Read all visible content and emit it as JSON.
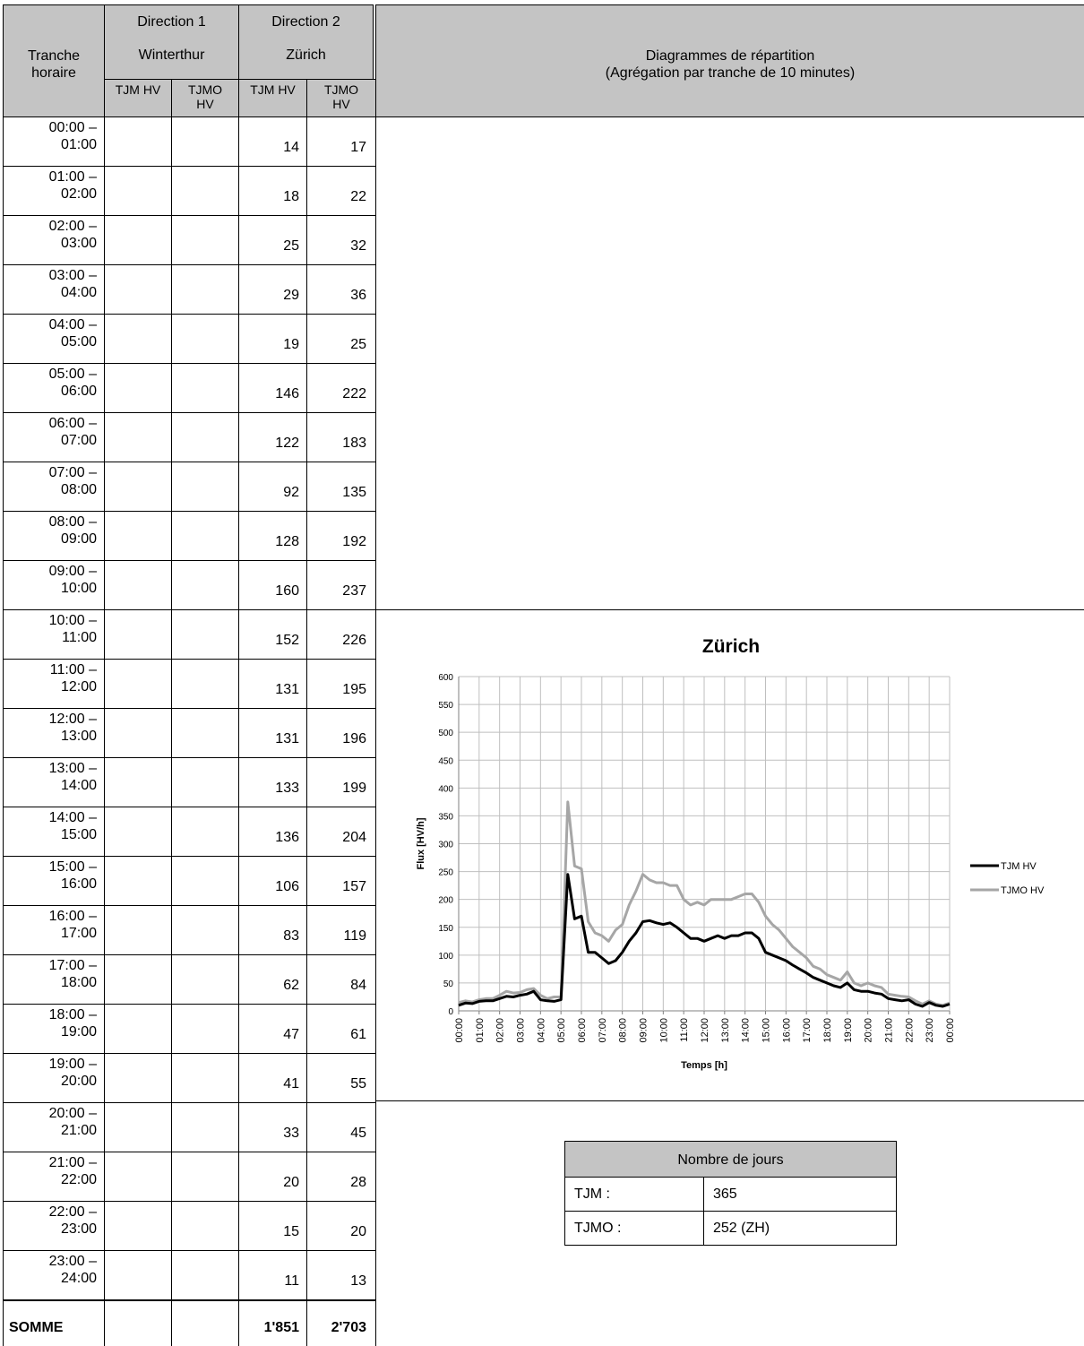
{
  "header": {
    "tranche": "Tranche horaire",
    "dir1": "Direction 1",
    "dir1_place": "Winterthur",
    "dir2": "Direction 2",
    "dir2_place": "Zürich",
    "cols": [
      "TJM HV",
      "TJMO HV",
      "TJM HV",
      "TJMO HV"
    ],
    "diagram": "Diagrammes de répartition",
    "diagram_sub": "(Agrégation par tranche de 10 minutes)"
  },
  "rows": [
    {
      "time": "00:00 – 01:00",
      "tjm": 14,
      "tjmo": 17
    },
    {
      "time": "01:00 – 02:00",
      "tjm": 18,
      "tjmo": 22
    },
    {
      "time": "02:00 – 03:00",
      "tjm": 25,
      "tjmo": 32
    },
    {
      "time": "03:00 – 04:00",
      "tjm": 29,
      "tjmo": 36
    },
    {
      "time": "04:00 – 05:00",
      "tjm": 19,
      "tjmo": 25
    },
    {
      "time": "05:00 – 06:00",
      "tjm": 146,
      "tjmo": 222
    },
    {
      "time": "06:00 – 07:00",
      "tjm": 122,
      "tjmo": 183
    },
    {
      "time": "07:00 – 08:00",
      "tjm": 92,
      "tjmo": 135
    },
    {
      "time": "08:00 – 09:00",
      "tjm": 128,
      "tjmo": 192
    },
    {
      "time": "09:00 – 10:00",
      "tjm": 160,
      "tjmo": 237
    },
    {
      "time": "10:00 – 11:00",
      "tjm": 152,
      "tjmo": 226
    },
    {
      "time": "11:00 – 12:00",
      "tjm": 131,
      "tjmo": 195
    },
    {
      "time": "12:00 – 13:00",
      "tjm": 131,
      "tjmo": 196
    },
    {
      "time": "13:00 – 14:00",
      "tjm": 133,
      "tjmo": 199
    },
    {
      "time": "14:00 – 15:00",
      "tjm": 136,
      "tjmo": 204
    },
    {
      "time": "15:00 – 16:00",
      "tjm": 106,
      "tjmo": 157
    },
    {
      "time": "16:00 – 17:00",
      "tjm": 83,
      "tjmo": 119
    },
    {
      "time": "17:00 – 18:00",
      "tjm": 62,
      "tjmo": 84
    },
    {
      "time": "18:00 – 19:00",
      "tjm": 47,
      "tjmo": 61
    },
    {
      "time": "19:00 – 20:00",
      "tjm": 41,
      "tjmo": 55
    },
    {
      "time": "20:00 – 21:00",
      "tjm": 33,
      "tjmo": 45
    },
    {
      "time": "21:00 – 22:00",
      "tjm": 20,
      "tjmo": 28
    },
    {
      "time": "22:00 – 23:00",
      "tjm": 15,
      "tjmo": 20
    },
    {
      "time": "23:00 – 24:00",
      "tjm": 11,
      "tjmo": 13
    }
  ],
  "sum": {
    "label": "SOMME",
    "tjm": "1'851",
    "tjmo": "2'703"
  },
  "days": {
    "title": "Nombre de jours",
    "rows": [
      [
        "TJM :",
        "365"
      ],
      [
        "TJMO :",
        "252 (ZH)"
      ]
    ]
  },
  "chart": {
    "type": "line",
    "title": "Zürich",
    "y_label": "Flux [HV/h]",
    "x_label": "Temps [h]",
    "xlim": [
      0,
      1440
    ],
    "ylim": [
      0,
      600
    ],
    "grid": true,
    "legend": "right",
    "yticks": [
      0,
      50,
      100,
      150,
      200,
      250,
      300,
      350,
      400,
      450,
      500,
      550,
      600
    ],
    "xticks": [
      {
        "value": 0,
        "label": "00:00"
      },
      {
        "value": 60,
        "label": "01:00"
      },
      {
        "value": 120,
        "label": "02:00"
      },
      {
        "value": 180,
        "label": "03:00"
      },
      {
        "value": 240,
        "label": "04:00"
      },
      {
        "value": 300,
        "label": "05:00"
      },
      {
        "value": 360,
        "label": "06:00"
      },
      {
        "value": 420,
        "label": "07:00"
      },
      {
        "value": 480,
        "label": "08:00"
      },
      {
        "value": 540,
        "label": "09:00"
      },
      {
        "value": 600,
        "label": "10:00"
      },
      {
        "value": 660,
        "label": "11:00"
      },
      {
        "value": 720,
        "label": "12:00"
      },
      {
        "value": 780,
        "label": "13:00"
      },
      {
        "value": 840,
        "label": "14:00"
      },
      {
        "value": 900,
        "label": "15:00"
      },
      {
        "value": 960,
        "label": "16:00"
      },
      {
        "value": 1020,
        "label": "17:00"
      },
      {
        "value": 1080,
        "label": "18:00"
      },
      {
        "value": 1140,
        "label": "19:00"
      },
      {
        "value": 1200,
        "label": "20:00"
      },
      {
        "value": 1260,
        "label": "21:00"
      },
      {
        "value": 1320,
        "label": "22:00"
      },
      {
        "value": 1380,
        "label": "23:00"
      },
      {
        "value": 1440,
        "label": "00:00"
      }
    ],
    "x": [
      0,
      20,
      40,
      60,
      80,
      100,
      120,
      140,
      160,
      180,
      200,
      220,
      240,
      260,
      280,
      300,
      320,
      340,
      360,
      380,
      400,
      420,
      440,
      460,
      480,
      500,
      520,
      540,
      560,
      580,
      600,
      620,
      640,
      660,
      680,
      700,
      720,
      740,
      760,
      780,
      800,
      820,
      840,
      860,
      880,
      900,
      920,
      940,
      960,
      980,
      1000,
      1020,
      1040,
      1060,
      1080,
      1100,
      1120,
      1140,
      1160,
      1180,
      1200,
      1220,
      1240,
      1260,
      1280,
      1300,
      1320,
      1340,
      1360,
      1380,
      1400,
      1420,
      1440
    ],
    "series": [
      {
        "name": "TJM HV",
        "color": "#000000",
        "values": [
          10,
          14,
          13,
          17,
          18,
          18,
          22,
          26,
          25,
          28,
          30,
          35,
          20,
          18,
          17,
          20,
          245,
          165,
          170,
          105,
          105,
          95,
          85,
          90,
          105,
          125,
          140,
          160,
          162,
          158,
          155,
          158,
          150,
          140,
          130,
          130,
          125,
          130,
          135,
          130,
          135,
          135,
          140,
          140,
          130,
          105,
          100,
          95,
          90,
          82,
          75,
          68,
          60,
          55,
          50,
          45,
          42,
          50,
          38,
          35,
          35,
          32,
          30,
          22,
          20,
          18,
          20,
          12,
          8,
          15,
          10,
          8,
          12
        ]
      },
      {
        "name": "TJMO HV",
        "color": "#a6a6a6",
        "values": [
          15,
          18,
          16,
          20,
          22,
          22,
          28,
          35,
          32,
          33,
          38,
          40,
          28,
          22,
          25,
          25,
          375,
          260,
          255,
          160,
          140,
          135,
          125,
          145,
          155,
          190,
          215,
          245,
          235,
          230,
          230,
          225,
          225,
          200,
          190,
          195,
          190,
          200,
          200,
          200,
          200,
          205,
          210,
          210,
          195,
          170,
          155,
          145,
          130,
          115,
          105,
          95,
          80,
          75,
          65,
          60,
          55,
          70,
          50,
          45,
          50,
          45,
          42,
          30,
          28,
          26,
          25,
          18,
          12,
          18,
          12,
          10,
          14
        ]
      }
    ]
  }
}
